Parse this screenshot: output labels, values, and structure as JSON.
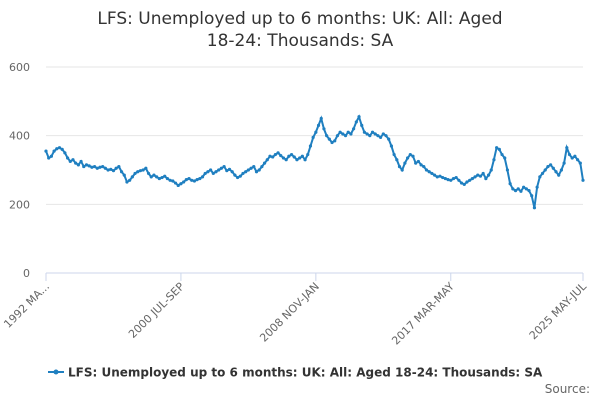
{
  "chart_data": {
    "type": "line",
    "title": "LFS: Unemployed up to 6 months: UK: All: Aged 18-24: Thousands: SA",
    "source": "Source:",
    "categories": [
      "1992 MA...",
      null,
      null,
      null,
      null,
      null,
      null,
      null,
      null,
      null,
      null,
      null,
      null,
      null,
      null,
      null,
      null,
      null,
      null,
      null,
      null,
      null,
      null,
      null,
      null,
      null,
      null,
      null,
      null,
      null,
      null,
      null,
      null,
      null,
      null,
      null,
      null,
      null,
      null,
      null,
      null,
      null,
      null,
      null,
      null,
      null,
      null,
      null,
      null,
      null,
      "2000 JUL-SEP",
      null,
      null,
      null,
      null,
      null,
      null,
      null,
      null,
      null,
      null,
      null,
      null,
      null,
      null,
      null,
      null,
      null,
      null,
      null,
      null,
      null,
      null,
      null,
      null,
      null,
      null,
      null,
      null,
      null,
      null,
      null,
      null,
      null,
      null,
      null,
      null,
      null,
      null,
      null,
      null,
      null,
      null,
      null,
      null,
      null,
      null,
      null,
      null,
      null,
      "2008 NOV-JAN",
      null,
      null,
      null,
      null,
      null,
      null,
      null,
      null,
      null,
      null,
      null,
      null,
      null,
      null,
      null,
      null,
      null,
      null,
      null,
      null,
      null,
      null,
      null,
      null,
      null,
      null,
      null,
      null,
      null,
      null,
      null,
      null,
      null,
      null,
      null,
      null,
      null,
      null,
      null,
      null,
      null,
      null,
      null,
      null,
      null,
      null,
      null,
      null,
      null,
      "2017 MAR-MAY",
      null,
      null,
      null,
      null,
      null,
      null,
      null,
      null,
      null,
      null,
      null,
      null,
      null,
      null,
      null,
      null,
      null,
      null,
      null,
      null,
      null,
      null,
      null,
      null,
      null,
      null,
      null,
      null,
      null,
      null,
      null,
      null,
      null,
      null,
      null,
      null,
      null,
      null,
      null,
      null,
      null,
      null,
      null,
      null,
      null,
      null,
      null,
      null,
      "2025 MAY-JUL"
    ],
    "series": [
      {
        "name": "LFS: Unemployed up to 6 months: UK: All: Aged 18-24: Thousands: SA",
        "color": "#1f7fc0",
        "values": [
          355,
          335,
          340,
          355,
          362,
          365,
          360,
          350,
          335,
          325,
          330,
          320,
          315,
          325,
          310,
          315,
          312,
          308,
          310,
          305,
          308,
          310,
          305,
          300,
          302,
          298,
          305,
          310,
          295,
          285,
          265,
          270,
          280,
          290,
          295,
          298,
          300,
          305,
          290,
          280,
          285,
          280,
          275,
          278,
          282,
          275,
          270,
          268,
          262,
          255,
          260,
          265,
          272,
          275,
          270,
          268,
          272,
          275,
          280,
          290,
          295,
          300,
          290,
          295,
          300,
          305,
          310,
          298,
          302,
          295,
          285,
          278,
          282,
          290,
          295,
          300,
          305,
          310,
          295,
          300,
          310,
          320,
          330,
          340,
          338,
          345,
          350,
          342,
          335,
          330,
          340,
          345,
          338,
          330,
          335,
          340,
          330,
          345,
          370,
          395,
          410,
          430,
          450,
          420,
          400,
          390,
          380,
          385,
          400,
          410,
          405,
          400,
          410,
          405,
          420,
          440,
          455,
          430,
          410,
          405,
          400,
          410,
          405,
          400,
          395,
          405,
          400,
          390,
          370,
          345,
          330,
          310,
          300,
          320,
          335,
          345,
          340,
          320,
          325,
          315,
          310,
          300,
          295,
          290,
          285,
          280,
          282,
          278,
          275,
          272,
          270,
          275,
          278,
          270,
          262,
          258,
          265,
          270,
          275,
          280,
          285,
          282,
          290,
          275,
          285,
          300,
          330,
          365,
          360,
          345,
          335,
          300,
          260,
          245,
          240,
          245,
          238,
          250,
          245,
          240,
          225,
          190,
          250,
          280,
          290,
          300,
          310,
          315,
          305,
          295,
          285,
          300,
          320,
          365,
          345,
          335,
          340,
          330,
          320,
          270
        ]
      }
    ],
    "ylim": [
      0,
      600
    ],
    "yticks": [
      0,
      200,
      400,
      600
    ],
    "grid": true
  }
}
